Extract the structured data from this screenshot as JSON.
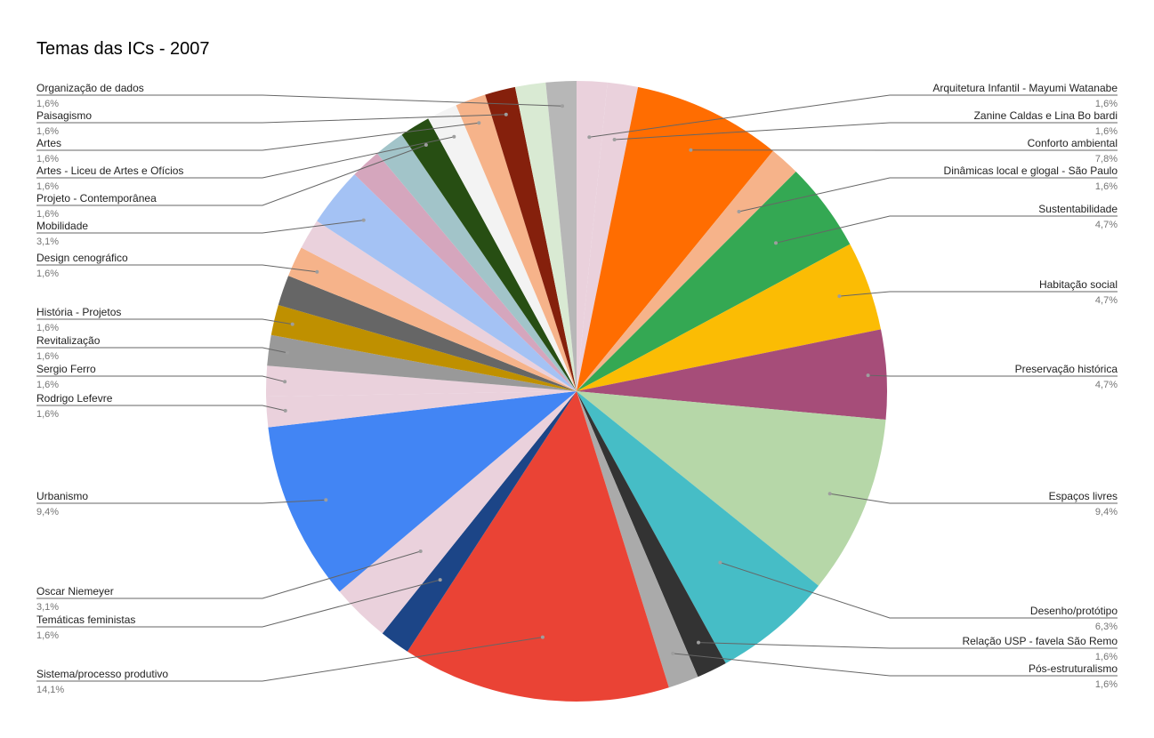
{
  "chart_data": {
    "type": "pie",
    "title": "Temas das ICs - 2007",
    "legend": "none",
    "slices": [
      {
        "name": "Arquitetura Infantil - Mayumi Watanabe",
        "value": 1.6,
        "label": "1,6%",
        "color": "#ead1dc"
      },
      {
        "name": "Zanine Caldas e Lina Bo bardi",
        "value": 1.6,
        "label": "1,6%",
        "color": "#ead1dc"
      },
      {
        "name": "Conforto ambiental",
        "value": 7.8,
        "label": "7,8%",
        "color": "#ff6d01"
      },
      {
        "name": "Dinâmicas local e glogal - São Paulo",
        "value": 1.6,
        "label": "1,6%",
        "color": "#f6b38a"
      },
      {
        "name": "Sustentabilidade",
        "value": 4.7,
        "label": "4,7%",
        "color": "#34a853"
      },
      {
        "name": "Habitação social",
        "value": 4.7,
        "label": "4,7%",
        "color": "#fbbc04"
      },
      {
        "name": "Preservação histórica",
        "value": 4.7,
        "label": "4,7%",
        "color": "#a64d79"
      },
      {
        "name": "Espaços livres",
        "value": 9.4,
        "label": "9,4%",
        "color": "#b6d7a8"
      },
      {
        "name": "Desenho/protótipo",
        "value": 6.3,
        "label": "6,3%",
        "color": "#46bdc6"
      },
      {
        "name": "Relação USP - favela São Remo",
        "value": 1.6,
        "label": "1,6%",
        "color": "#333333"
      },
      {
        "name": "Pós-estruturalismo",
        "value": 1.6,
        "label": "1,6%",
        "color": "#aaaaaa"
      },
      {
        "name": "Sistema/processo produtivo",
        "value": 14.1,
        "label": "14,1%",
        "color": "#ea4335"
      },
      {
        "name": "Temáticas feministas",
        "value": 1.6,
        "label": "1,6%",
        "color": "#1c4587"
      },
      {
        "name": "Oscar Niemeyer",
        "value": 3.1,
        "label": "3,1%",
        "color": "#ead1dc"
      },
      {
        "name": "Urbanismo",
        "value": 9.4,
        "label": "9,4%",
        "color": "#4285f4"
      },
      {
        "name": "Rodrigo Lefevre",
        "value": 1.6,
        "label": "1,6%",
        "color": "#ead1dc"
      },
      {
        "name": "Sergio Ferro",
        "value": 1.6,
        "label": "1,6%",
        "color": "#ead1dc"
      },
      {
        "name": "Revitalização",
        "value": 1.6,
        "label": "1,6%",
        "color": "#999999"
      },
      {
        "name": "História - Projetos",
        "value": 1.6,
        "label": "1,6%",
        "color": "#bf9000"
      },
      {
        "name": "",
        "value": 1.6,
        "label": "",
        "color": "#666666"
      },
      {
        "name": "Design cenográfico",
        "value": 1.6,
        "label": "1,6%",
        "color": "#f6b38a"
      },
      {
        "name": "",
        "value": 1.6,
        "label": "",
        "color": "#ead1dc"
      },
      {
        "name": "Mobilidade",
        "value": 3.1,
        "label": "3,1%",
        "color": "#a4c2f4"
      },
      {
        "name": "",
        "value": 1.6,
        "label": "",
        "color": "#d5a6bd"
      },
      {
        "name": "",
        "value": 1.6,
        "label": "",
        "color": "#a2c4c9"
      },
      {
        "name": "Projeto - Contemporânea",
        "value": 1.6,
        "label": "1,6%",
        "color": "#274e13"
      },
      {
        "name": "Artes - Liceu de Artes e Ofícios",
        "value": 1.6,
        "label": "1,6%",
        "color": "#f3f3f3"
      },
      {
        "name": "Artes",
        "value": 1.6,
        "label": "1,6%",
        "color": "#f6b38a"
      },
      {
        "name": "Paisagismo",
        "value": 1.6,
        "label": "1,6%",
        "color": "#85200c"
      },
      {
        "name": "",
        "value": 1.6,
        "label": "",
        "color": "#d9ead3"
      },
      {
        "name": "Organização de dados",
        "value": 1.6,
        "label": "1,6%",
        "color": "#b7b7b7"
      }
    ]
  }
}
